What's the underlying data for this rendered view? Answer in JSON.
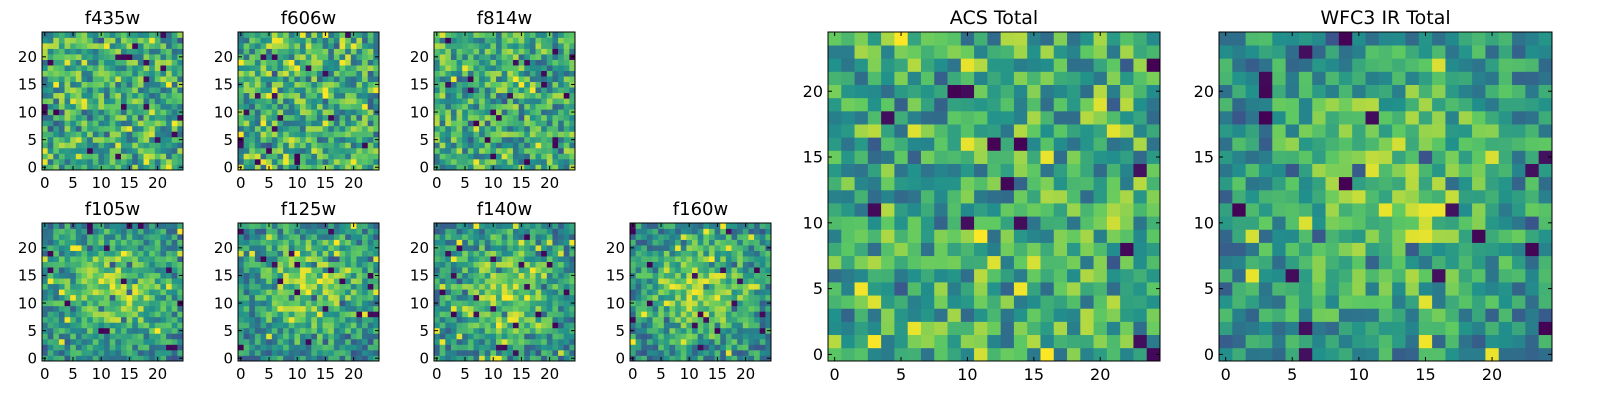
{
  "chart_data": {
    "type": "heatmap",
    "colormap": [
      "#440154",
      "#3b528b",
      "#21918c",
      "#5ec962",
      "#fde725"
    ],
    "panels": [
      {
        "id": "f435w",
        "title": "f435w",
        "size": 25,
        "xticks": [
          0,
          5,
          10,
          15,
          20
        ],
        "yticks": [
          0,
          5,
          10,
          15,
          20
        ],
        "texture": "noise",
        "seed": 11
      },
      {
        "id": "f606w",
        "title": "f606w",
        "size": 25,
        "xticks": [
          0,
          5,
          10,
          15,
          20
        ],
        "yticks": [
          0,
          5,
          10,
          15,
          20
        ],
        "texture": "noise",
        "seed": 23
      },
      {
        "id": "f814w",
        "title": "f814w",
        "size": 25,
        "xticks": [
          0,
          5,
          10,
          15,
          20
        ],
        "yticks": [
          0,
          5,
          10,
          15,
          20
        ],
        "texture": "noise",
        "seed": 37
      },
      {
        "id": "f105w",
        "title": "f105w",
        "size": 25,
        "xticks": [
          0,
          5,
          10,
          15,
          20
        ],
        "yticks": [
          0,
          5,
          10,
          15,
          20
        ],
        "texture": "blob",
        "seed": 41
      },
      {
        "id": "f125w",
        "title": "f125w",
        "size": 25,
        "xticks": [
          0,
          5,
          10,
          15,
          20
        ],
        "yticks": [
          0,
          5,
          10,
          15,
          20
        ],
        "texture": "blob",
        "seed": 53
      },
      {
        "id": "f140w",
        "title": "f140w",
        "size": 25,
        "xticks": [
          0,
          5,
          10,
          15,
          20
        ],
        "yticks": [
          0,
          5,
          10,
          15,
          20
        ],
        "texture": "blob",
        "seed": 67
      },
      {
        "id": "f160w",
        "title": "f160w",
        "size": 25,
        "xticks": [
          0,
          5,
          10,
          15,
          20
        ],
        "yticks": [
          0,
          5,
          10,
          15,
          20
        ],
        "texture": "blob",
        "seed": 79
      },
      {
        "id": "acs-total",
        "title": "ACS Total",
        "size": 25,
        "xticks": [
          0,
          5,
          10,
          15,
          20
        ],
        "yticks": [
          0,
          5,
          10,
          15,
          20
        ],
        "texture": "noise",
        "seed": 83
      },
      {
        "id": "wfc3-ir-total",
        "title": "WFC3 IR Total",
        "size": 25,
        "xticks": [
          0,
          5,
          10,
          15,
          20
        ],
        "yticks": [
          0,
          5,
          10,
          15,
          20
        ],
        "texture": "blob",
        "seed": 97
      }
    ]
  }
}
